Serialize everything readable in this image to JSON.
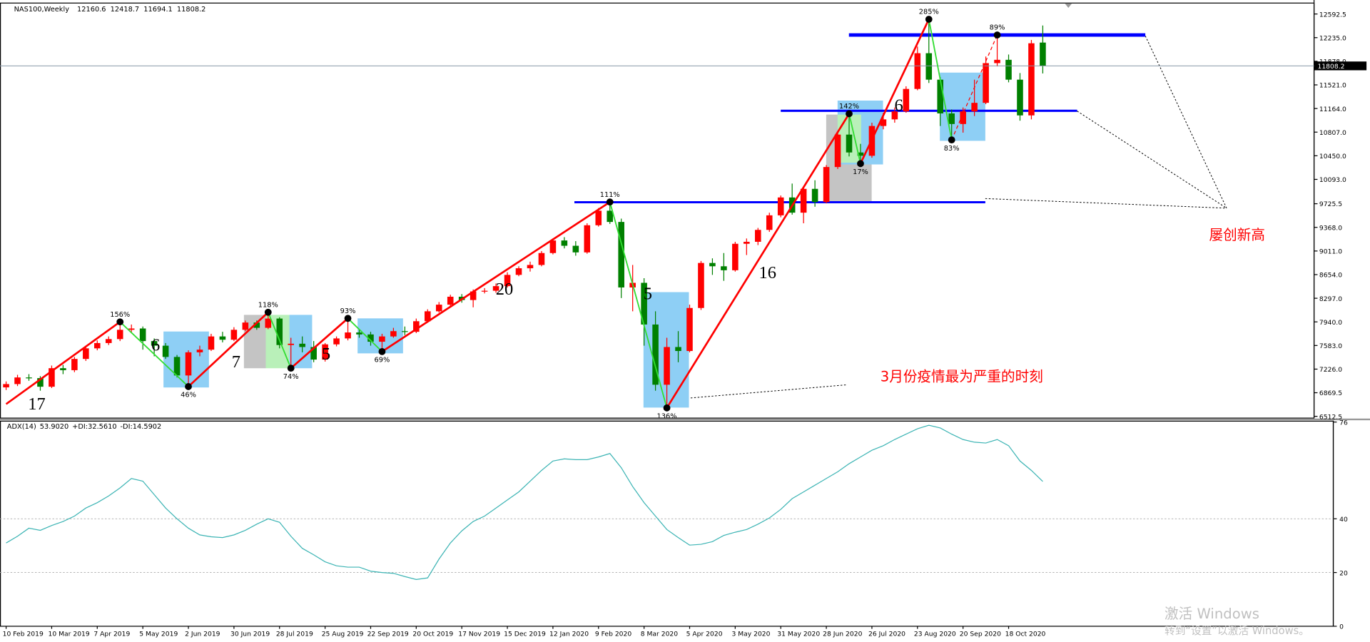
{
  "chart_data": [
    {
      "type": "candlestick",
      "title": "NAS100,Weekly",
      "categories": [
        "10 Feb 2019",
        null,
        null,
        null,
        "10 Mar 2019",
        null,
        null,
        null,
        "7 Apr 2019",
        null,
        null,
        null,
        "5 May 2019",
        null,
        null,
        null,
        "2 Jun 2019",
        null,
        null,
        null,
        "30 Jun 2019",
        null,
        null,
        null,
        "28 Jul 2019",
        null,
        null,
        null,
        "25 Aug 2019",
        null,
        null,
        null,
        "22 Sep 2019",
        null,
        null,
        null,
        "20 Oct 2019",
        null,
        null,
        null,
        "17 Nov 2019",
        null,
        null,
        null,
        "15 Dec 2019",
        null,
        null,
        null,
        "12 Jan 2020",
        null,
        null,
        null,
        "9 Feb 2020",
        null,
        null,
        null,
        "8 Mar 2020",
        null,
        null,
        null,
        "5 Apr 2020",
        null,
        null,
        null,
        "3 May 2020",
        null,
        null,
        null,
        "31 May 2020",
        null,
        null,
        null,
        "28 Jun 2020",
        null,
        null,
        null,
        "26 Jul 2020",
        null,
        null,
        null,
        "23 Aug 2020",
        null,
        null,
        null,
        "20 Sep 2020",
        null,
        null,
        null,
        "18 Oct 2020",
        null,
        null,
        null
      ],
      "open": [
        6950,
        7000,
        7100,
        7090,
        6960,
        7240,
        7210,
        7380,
        7540,
        7620,
        7680,
        7820,
        7840,
        7650,
        7580,
        7410,
        7130,
        7480,
        7520,
        7720,
        7670,
        7820,
        7930,
        7850,
        7990,
        7590,
        7610,
        7560,
        7370,
        7600,
        7690,
        7780,
        7750,
        7640,
        7720,
        7800,
        7790,
        7950,
        8100,
        8200,
        8320,
        8270,
        8400,
        8410,
        8480,
        8650,
        8750,
        8800,
        8980,
        9170,
        9090,
        8990,
        9400,
        9620,
        9450,
        8460,
        8530,
        7900,
        6990,
        7560,
        7500,
        8150,
        8830,
        8780,
        8720,
        9120,
        9150,
        9330,
        9550,
        9820,
        9590,
        9950,
        9750,
        10280,
        10770,
        10500,
        10450,
        10900,
        11000,
        11120,
        11460,
        12000,
        11600,
        11090,
        10930,
        11120,
        11250,
        11850,
        11900,
        11600,
        11060,
        12160.6
      ],
      "high": [
        7040,
        7140,
        7150,
        7120,
        7280,
        7290,
        7410,
        7570,
        7660,
        7720,
        7940,
        7900,
        7870,
        7690,
        7620,
        7440,
        7510,
        7580,
        7760,
        7790,
        7860,
        7960,
        7960,
        8085,
        8010,
        7700,
        7720,
        7650,
        7620,
        7720,
        7993,
        7830,
        7790,
        7760,
        7850,
        7870,
        7990,
        8130,
        8240,
        8350,
        8360,
        8430,
        8450,
        8520,
        8690,
        8780,
        8850,
        9010,
        9200,
        9220,
        9160,
        9430,
        9660,
        9751,
        9500,
        8800,
        8600,
        8100,
        7700,
        7800,
        8200,
        8860,
        8900,
        8980,
        9150,
        9200,
        9360,
        9590,
        9850,
        10030,
        9990,
        10080,
        10310,
        10800,
        11085,
        10630,
        10950,
        11100,
        11180,
        11500,
        12100,
        12513,
        11640,
        11150,
        11180,
        11600,
        11950,
        12275,
        11980,
        11700,
        12200,
        12418.7
      ],
      "low": [
        6910,
        6970,
        7050,
        6900,
        6940,
        7150,
        7180,
        7350,
        7510,
        7590,
        7650,
        7780,
        7520,
        7420,
        7380,
        7100,
        6962,
        7420,
        7500,
        7630,
        7650,
        7800,
        7820,
        7830,
        7540,
        7240,
        7480,
        7330,
        7340,
        7570,
        7660,
        7700,
        7580,
        7491,
        7700,
        7740,
        7770,
        7930,
        8080,
        8180,
        8230,
        8160,
        8370,
        8380,
        8460,
        8630,
        8700,
        8780,
        8960,
        9050,
        8940,
        8970,
        9380,
        9420,
        8300,
        8100,
        7580,
        6900,
        6640,
        7330,
        7480,
        8120,
        8650,
        8560,
        8700,
        8950,
        9100,
        9300,
        9520,
        9560,
        9430,
        9680,
        9730,
        10250,
        10440,
        10332,
        10420,
        10850,
        10950,
        11100,
        11440,
        11550,
        10900,
        10690,
        10800,
        11050,
        11230,
        11800,
        11560,
        10980,
        11000,
        11694.1
      ],
      "close": [
        7000,
        7100,
        7090,
        6960,
        7240,
        7210,
        7380,
        7540,
        7620,
        7680,
        7820,
        7840,
        7650,
        7580,
        7410,
        7130,
        7480,
        7520,
        7720,
        7670,
        7820,
        7930,
        7850,
        7990,
        7590,
        7610,
        7560,
        7370,
        7600,
        7690,
        7780,
        7750,
        7640,
        7720,
        7800,
        7790,
        7950,
        8100,
        8200,
        8320,
        8270,
        8400,
        8410,
        8480,
        8650,
        8750,
        8800,
        8980,
        9170,
        9090,
        8990,
        9400,
        9620,
        9450,
        8460,
        8530,
        7900,
        6990,
        7560,
        7500,
        8150,
        8830,
        8780,
        8720,
        9120,
        9150,
        9330,
        9550,
        9820,
        9590,
        9950,
        9750,
        10280,
        10770,
        10500,
        10450,
        10900,
        11000,
        11120,
        11460,
        12000,
        11600,
        11090,
        10930,
        11120,
        11250,
        11850,
        11900,
        11600,
        11060,
        12150,
        11808.2
      ],
      "up_color": "#ff0000",
      "down_color": "#008000",
      "ylim": [
        6486,
        12751
      ],
      "yticks": [
        12592.5,
        {
          "value": 12235,
          "label": "12235.0"
        },
        {
          "value": 11878,
          "label": "11878.0"
        },
        {
          "value": 11521,
          "label": "11521.0"
        },
        {
          "value": 11164,
          "label": "11164.0"
        },
        {
          "value": 10807,
          "label": "10807.0"
        },
        {
          "value": 10450,
          "label": "10450.0"
        },
        {
          "value": 10093,
          "label": "10093.0"
        },
        9725.5,
        {
          "value": 9368,
          "label": "9368.0"
        },
        {
          "value": 9011,
          "label": "9011.0"
        },
        {
          "value": 8654,
          "label": "8654.0"
        },
        {
          "value": 8297,
          "label": "8297.0"
        },
        {
          "value": 7940,
          "label": "7940.0"
        },
        {
          "value": 7583,
          "label": "7583.0"
        },
        {
          "value": 7226,
          "label": "7226.0"
        },
        6869.5,
        6512.5
      ],
      "levels": [
        12275,
        11130,
        9748
      ],
      "level_color": "#0000ff",
      "zigzag": [
        {
          "index": 0,
          "price": 6698
        },
        {
          "index": 10,
          "price": 7940,
          "label": "156%"
        },
        {
          "index": 16,
          "price": 6962,
          "label": "46%"
        },
        {
          "index": 23,
          "price": 8085,
          "label": "118%"
        },
        {
          "index": 25,
          "price": 7240,
          "label": "74%"
        },
        {
          "index": 30,
          "price": 7993,
          "label": "93%"
        },
        {
          "index": 33,
          "price": 7491,
          "label": "69%"
        },
        {
          "index": 53,
          "price": 9751,
          "label": "111%"
        },
        {
          "index": 58,
          "price": 6640,
          "label": "136%"
        },
        {
          "index": 74,
          "price": 11085,
          "label": "142%"
        },
        {
          "index": 75,
          "price": 10332,
          "label": "17%"
        },
        {
          "index": 81,
          "price": 12513,
          "label": "285%"
        },
        {
          "index": 83,
          "price": 10690,
          "label": "83%"
        },
        {
          "index": 87,
          "price": 12275,
          "label": "89%"
        }
      ],
      "zigzag_up_color": "#ff0000",
      "zigzag_down_color": "#33dd33",
      "zigzag_last_dashed": true,
      "wave_counts": [
        17,
        6,
        7,
        5,
        20,
        5,
        16,
        6
      ],
      "notes": [
        "3月份疫情最为严重的时刻",
        "屡创新高"
      ],
      "note_color": "#ff0000"
    },
    {
      "type": "line",
      "title": "ADX(14)",
      "adx_label": {
        "value": 53.902,
        "label": "53.9020"
      },
      "di_plus": {
        "value": 32.561,
        "label": "+DI:32.5610"
      },
      "di_minus": {
        "value": 14.5902,
        "label": "-DI:14.5902"
      },
      "values": [
        31,
        33.5,
        36.5,
        35.7,
        37.5,
        39,
        41,
        44,
        46,
        48.5,
        51.5,
        55,
        54,
        49,
        44,
        40,
        36.5,
        34,
        33.3,
        33,
        34,
        35.7,
        38,
        40,
        38.7,
        33.5,
        29,
        26.6,
        24,
        22.5,
        22,
        22,
        20.5,
        20,
        19.7,
        18.5,
        17.4,
        18,
        25,
        31,
        35.5,
        39,
        41,
        44,
        47,
        50,
        54,
        58,
        61.5,
        62.3,
        62,
        62,
        63,
        64.3,
        59,
        52,
        46,
        41,
        36,
        33,
        30.2,
        30.5,
        31.5,
        33.8,
        35,
        36,
        38,
        40.3,
        43.5,
        47.5,
        50,
        52.5,
        55,
        57.5,
        60.5,
        63,
        65.5,
        67.2,
        69.5,
        71.5,
        73.5,
        74.8,
        73.8,
        71.5,
        69.5,
        68.5,
        68.2,
        69.5,
        67.2,
        61.5,
        58,
        53.902
      ],
      "color": "#3cb4b4",
      "ylim": [
        0,
        76.5
      ],
      "yticks": [
        76,
        40,
        20,
        0
      ],
      "grid": true
    }
  ],
  "watermark": {
    "line1": "激活 Windows",
    "line2": "转到“设置”以激活 Windows。"
  }
}
